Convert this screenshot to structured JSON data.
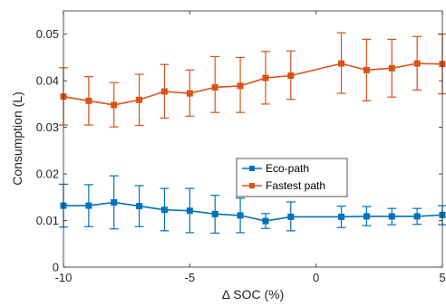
{
  "chart_data": {
    "type": "line",
    "title": "",
    "xlabel": "Δ SOC (%)",
    "ylabel": "Consumption (L)",
    "xlim": [
      -10,
      5
    ],
    "ylim": [
      0,
      0.055
    ],
    "xticks": [
      -10,
      -5,
      0,
      5
    ],
    "xtick_labels": [
      "-10",
      "-5",
      "0",
      "5"
    ],
    "yticks": [
      0,
      0.01,
      0.02,
      0.03,
      0.04,
      0.05
    ],
    "ytick_labels": [
      "0",
      "0.01",
      "0.02",
      "0.03",
      "0.04",
      "0.05"
    ],
    "grid": false,
    "legend_position": "center-right",
    "error_bars": true,
    "series": [
      {
        "name": "Eco-path",
        "color": "#0072BD",
        "marker": "square",
        "x": [
          -10,
          -9,
          -8,
          -7,
          -6,
          -5,
          -4,
          -3,
          -2,
          -1,
          1,
          2,
          3,
          4,
          5
        ],
        "y": [
          0.0132,
          0.0132,
          0.0139,
          0.0131,
          0.0123,
          0.0121,
          0.0114,
          0.0111,
          0.0099,
          0.0108,
          0.0108,
          0.0109,
          0.0109,
          0.0109,
          0.0112
        ],
        "lower": [
          0.0086,
          0.0087,
          0.0082,
          0.0087,
          0.0078,
          0.0074,
          0.0073,
          0.0074,
          0.0083,
          0.0078,
          0.0085,
          0.0089,
          0.0091,
          0.0092,
          0.0091
        ],
        "upper": [
          0.0178,
          0.0177,
          0.0196,
          0.0175,
          0.0169,
          0.0169,
          0.0154,
          0.0148,
          0.0115,
          0.014,
          0.0131,
          0.013,
          0.0126,
          0.0126,
          0.0132
        ]
      },
      {
        "name": "Fastest path",
        "color": "#D95319",
        "marker": "square",
        "x": [
          -10,
          -9,
          -8,
          -7,
          -6,
          -5,
          -4,
          -3,
          -2,
          -1,
          1,
          2,
          3,
          4,
          5
        ],
        "y": [
          0.0366,
          0.0357,
          0.0348,
          0.0359,
          0.0377,
          0.0373,
          0.0386,
          0.0389,
          0.0406,
          0.0411,
          0.0437,
          0.0423,
          0.0427,
          0.0437,
          0.0436
        ],
        "lower": [
          0.0305,
          0.0305,
          0.0301,
          0.0304,
          0.032,
          0.0324,
          0.0332,
          0.0332,
          0.035,
          0.036,
          0.0373,
          0.0357,
          0.0365,
          0.038,
          0.0372
        ],
        "upper": [
          0.0428,
          0.0409,
          0.0396,
          0.0414,
          0.0435,
          0.0423,
          0.0452,
          0.045,
          0.0463,
          0.0464,
          0.0503,
          0.0489,
          0.0489,
          0.0495,
          0.05
        ]
      }
    ]
  }
}
